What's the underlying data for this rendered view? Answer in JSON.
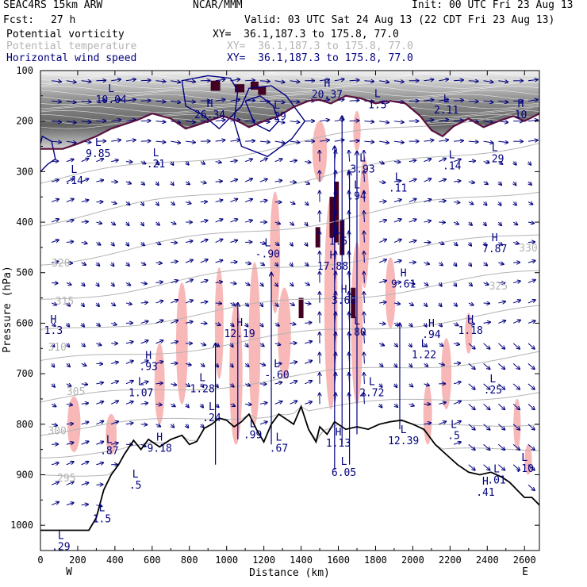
{
  "header": {
    "model": "SEAC4RS 15km ARW",
    "org": "NCAR/MMM",
    "init": "Init: 00 UTC Fri 23 Aug 13",
    "fcst_label": "Fcst:",
    "fcst_value": "27 h",
    "valid": "Valid: 03 UTC Sat 24 Aug 13 (22 CDT Fri 23 Aug 13)"
  },
  "fields": [
    {
      "name": "Potential vorticity",
      "xy": "XY=  36.1,187.3 to 175.8, 77.0",
      "color": "#000000"
    },
    {
      "name": "Potential temperature",
      "xy": "XY=  36.1,187.3 to 175.8, 77.0",
      "color": "#b4b4b4"
    },
    {
      "name": "Horizontal wind speed",
      "xy": "XY=  36.1,187.3 to 175.8, 77.0",
      "color": "#000080"
    }
  ],
  "chart_data": {
    "type": "cross-section",
    "xlabel": "Distance (km)",
    "ylabel": "Pressure (hPa)",
    "xlim": [
      0,
      2680
    ],
    "ylim": [
      1050,
      100
    ],
    "x_ticks": [
      "0",
      "200",
      "400",
      "600",
      "800",
      "1000",
      "1200",
      "1400",
      "1600",
      "1800",
      "2000",
      "2200",
      "2400",
      "2600"
    ],
    "y_ticks": [
      "100",
      "200",
      "300",
      "400",
      "500",
      "600",
      "700",
      "800",
      "900",
      "1000"
    ],
    "x_end_labels": {
      "left": "W",
      "right": "E"
    },
    "theta_labels": [
      {
        "text": "330",
        "x": 2620,
        "p": 458
      },
      {
        "text": "325",
        "x": 2460,
        "p": 533
      },
      {
        "text": "320",
        "x": 110,
        "p": 488
      },
      {
        "text": "315",
        "x": 130,
        "p": 563
      },
      {
        "text": "310",
        "x": 90,
        "p": 654
      },
      {
        "text": "305",
        "x": 190,
        "p": 742
      },
      {
        "text": "300",
        "x": 90,
        "p": 820
      },
      {
        "text": "295",
        "x": 140,
        "p": 913
      }
    ],
    "extrema": [
      {
        "kind": "L",
        "value": "10.04",
        "x": 380,
        "p": 155
      },
      {
        "kind": "H",
        "value": "20.37",
        "x": 1540,
        "p": 145
      },
      {
        "kind": "H",
        "value": "26.34",
        "x": 910,
        "p": 185
      },
      {
        "kind": "L",
        "value": "1.5",
        "x": 1810,
        "p": 165
      },
      {
        "kind": "L",
        "value": "2.11",
        "x": 2180,
        "p": 175
      },
      {
        "kind": "H",
        "value": "10",
        "x": 2580,
        "p": 185
      },
      {
        "kind": "L",
        "value": ".29",
        "x": 1270,
        "p": 188
      },
      {
        "kind": "L",
        "value": "9.85",
        "x": 310,
        "p": 262
      },
      {
        "kind": "L",
        "value": ".14",
        "x": 180,
        "p": 315
      },
      {
        "kind": "L",
        "value": ".21",
        "x": 620,
        "p": 282
      },
      {
        "kind": "L",
        "value": "3.93",
        "x": 1730,
        "p": 292
      },
      {
        "kind": "L",
        "value": ".94",
        "x": 1700,
        "p": 346
      },
      {
        "kind": "L",
        "value": ".11",
        "x": 1920,
        "p": 330
      },
      {
        "kind": "L",
        "value": ".14",
        "x": 2210,
        "p": 286
      },
      {
        "kind": "L",
        "value": ".29",
        "x": 2440,
        "p": 272
      },
      {
        "kind": "L",
        "value": "1.5",
        "x": 1600,
        "p": 435
      },
      {
        "kind": "L",
        "value": "-.90",
        "x": 1220,
        "p": 460
      },
      {
        "kind": "H",
        "value": "17.88",
        "x": 1570,
        "p": 485
      },
      {
        "kind": "H",
        "value": "7.87",
        "x": 2440,
        "p": 450
      },
      {
        "kind": "H",
        "value": "9.61",
        "x": 1950,
        "p": 520
      },
      {
        "kind": "H",
        "value": "3.68",
        "x": 1630,
        "p": 552
      },
      {
        "kind": "L",
        "value": ".80",
        "x": 1700,
        "p": 615
      },
      {
        "kind": "H",
        "value": "1.3",
        "x": 70,
        "p": 612
      },
      {
        "kind": "H",
        "value": "12.19",
        "x": 1070,
        "p": 618
      },
      {
        "kind": "H",
        "value": ".94",
        "x": 2100,
        "p": 620
      },
      {
        "kind": "H",
        "value": "1.18",
        "x": 2310,
        "p": 612
      },
      {
        "kind": "L",
        "value": "1.22",
        "x": 2060,
        "p": 660
      },
      {
        "kind": "H",
        "value": ".93",
        "x": 580,
        "p": 683
      },
      {
        "kind": "L",
        "value": "1.07",
        "x": 540,
        "p": 735
      },
      {
        "kind": "L",
        "value": "-.60",
        "x": 1270,
        "p": 700
      },
      {
        "kind": "L",
        "value": "1.28",
        "x": 870,
        "p": 727
      },
      {
        "kind": "L",
        "value": "2.72",
        "x": 1780,
        "p": 735
      },
      {
        "kind": "L",
        "value": ".25",
        "x": 2430,
        "p": 730
      },
      {
        "kind": "L",
        "value": ".24",
        "x": 920,
        "p": 785
      },
      {
        "kind": "L",
        "value": ".99",
        "x": 1140,
        "p": 818
      },
      {
        "kind": "L",
        "value": ".87",
        "x": 370,
        "p": 850
      },
      {
        "kind": "H",
        "value": "9.18",
        "x": 640,
        "p": 845
      },
      {
        "kind": "L",
        "value": ".67",
        "x": 1280,
        "p": 845
      },
      {
        "kind": "H",
        "value": "1.13",
        "x": 1600,
        "p": 835
      },
      {
        "kind": "L",
        "value": "12.39",
        "x": 1950,
        "p": 830
      },
      {
        "kind": "L",
        "value": ".5",
        "x": 2220,
        "p": 820
      },
      {
        "kind": "L",
        "value": "6.05",
        "x": 1630,
        "p": 893
      },
      {
        "kind": "L",
        "value": ".5",
        "x": 510,
        "p": 918
      },
      {
        "kind": "L",
        "value": ".01",
        "x": 2450,
        "p": 908
      },
      {
        "kind": "H",
        "value": ".41",
        "x": 2390,
        "p": 932
      },
      {
        "kind": "L",
        "value": ".10",
        "x": 2600,
        "p": 885
      },
      {
        "kind": "L",
        "value": "1.5",
        "x": 330,
        "p": 985
      },
      {
        "kind": "L",
        "value": ".29",
        "x": 110,
        "p": 1040
      }
    ],
    "colors": {
      "pv_contour": "#000000",
      "theta_contour": "#b4b4b4",
      "wind_contour": "#000080",
      "wind_vectors": "#000080",
      "pv_positive_shading": "#f8b8b8",
      "pv_negative_shading": "#440022",
      "tropopause_line": "#5a1040"
    }
  }
}
